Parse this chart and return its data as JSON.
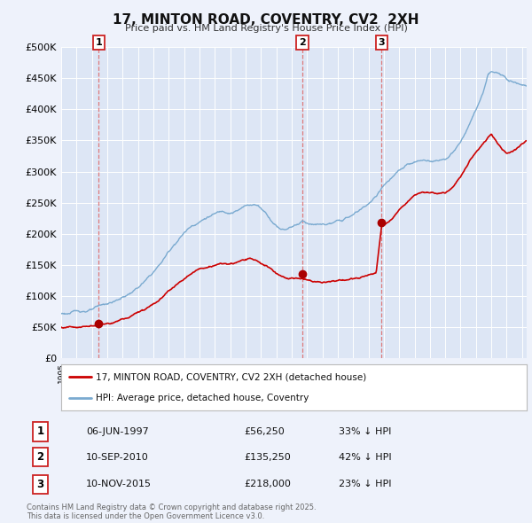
{
  "title": "17, MINTON ROAD, COVENTRY, CV2  2XH",
  "subtitle": "Price paid vs. HM Land Registry's House Price Index (HPI)",
  "ylim": [
    0,
    500000
  ],
  "yticks": [
    0,
    50000,
    100000,
    150000,
    200000,
    250000,
    300000,
    350000,
    400000,
    450000,
    500000
  ],
  "ytick_labels": [
    "£0",
    "£50K",
    "£100K",
    "£150K",
    "£200K",
    "£250K",
    "£300K",
    "£350K",
    "£400K",
    "£450K",
    "£500K"
  ],
  "background_color": "#eef2fb",
  "plot_bg_color": "#dde6f5",
  "grid_color": "#ffffff",
  "transactions": [
    {
      "date": "06-JUN-1997",
      "x": 1997.44,
      "price": 56250,
      "label": "1",
      "pct": "33% ↓ HPI"
    },
    {
      "date": "10-SEP-2010",
      "x": 2010.69,
      "price": 135250,
      "label": "2",
      "pct": "42% ↓ HPI"
    },
    {
      "date": "10-NOV-2015",
      "x": 2015.86,
      "price": 218000,
      "label": "3",
      "pct": "23% ↓ HPI"
    }
  ],
  "red_line_color": "#cc0000",
  "blue_line_color": "#7aaad0",
  "marker_color": "#aa0000",
  "dashed_line_color": "#dd6666",
  "legend_label_red": "17, MINTON ROAD, COVENTRY, CV2 2XH (detached house)",
  "legend_label_blue": "HPI: Average price, detached house, Coventry",
  "footer": "Contains HM Land Registry data © Crown copyright and database right 2025.\nThis data is licensed under the Open Government Licence v3.0.",
  "xlim_start": 1995.0,
  "xlim_end": 2025.3
}
